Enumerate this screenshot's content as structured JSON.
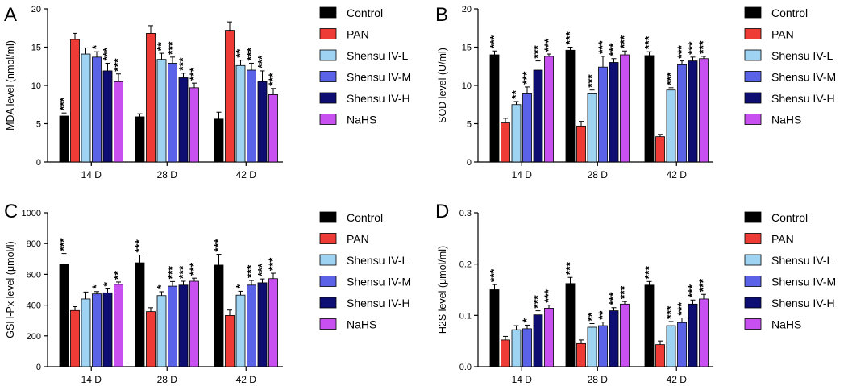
{
  "figure": {
    "group_colors": [
      "#000000",
      "#ef3b36",
      "#9fd3f2",
      "#5a62e8",
      "#0d0d72",
      "#c84ff0"
    ]
  },
  "chart_data": [
    {
      "panel": "A",
      "type": "bar",
      "ylabel": "MDA level (nmol/ml)",
      "ylim": [
        0,
        20
      ],
      "yticks": [
        "0",
        "5",
        "10",
        "15",
        "20"
      ],
      "categories": [
        "14 D",
        "28 D",
        "42 D"
      ],
      "legend": [
        "Control",
        "PAN",
        "Shensu IV-L",
        "Shensu IV-M",
        "Shensu IV-H",
        "NaHS"
      ],
      "series": [
        {
          "name": "Control",
          "values": [
            6.0,
            5.9,
            5.6
          ],
          "errors": [
            0.4,
            0.4,
            0.9
          ],
          "sig": [
            "***",
            "",
            ""
          ]
        },
        {
          "name": "PAN",
          "values": [
            16.0,
            16.8,
            17.2
          ],
          "errors": [
            0.8,
            1.0,
            1.1
          ],
          "sig": [
            "",
            "",
            ""
          ]
        },
        {
          "name": "Shensu IV-L",
          "values": [
            14.1,
            13.4,
            12.6
          ],
          "errors": [
            0.8,
            0.8,
            0.7
          ],
          "sig": [
            "",
            "**",
            "**"
          ]
        },
        {
          "name": "Shensu IV-M",
          "values": [
            13.7,
            12.9,
            12.0
          ],
          "errors": [
            0.7,
            0.8,
            0.9
          ],
          "sig": [
            "*",
            "***",
            "***"
          ]
        },
        {
          "name": "Shensu IV-H",
          "values": [
            11.9,
            11.0,
            10.5
          ],
          "errors": [
            1.0,
            0.6,
            1.4
          ],
          "sig": [
            "***",
            "***",
            "***"
          ]
        },
        {
          "name": "NaHS",
          "values": [
            10.5,
            9.7,
            8.8
          ],
          "errors": [
            1.0,
            0.6,
            0.8
          ],
          "sig": [
            "***",
            "***",
            "***"
          ]
        }
      ]
    },
    {
      "panel": "B",
      "type": "bar",
      "ylabel": "SOD level (U/ml)",
      "ylim": [
        0,
        20
      ],
      "yticks": [
        "0",
        "5",
        "10",
        "15",
        "20"
      ],
      "categories": [
        "14 D",
        "28 D",
        "42 D"
      ],
      "legend": [
        "Control",
        "PAN",
        "Shensu IV-L",
        "Shensu IV-M",
        "Shensu IV-H",
        "NaHS"
      ],
      "series": [
        {
          "name": "Control",
          "values": [
            14.0,
            14.6,
            13.9
          ],
          "errors": [
            0.5,
            0.4,
            0.5
          ],
          "sig": [
            "***",
            "***",
            "***"
          ]
        },
        {
          "name": "PAN",
          "values": [
            5.1,
            4.7,
            3.3
          ],
          "errors": [
            0.6,
            0.6,
            0.3
          ],
          "sig": [
            "",
            "",
            ""
          ]
        },
        {
          "name": "Shensu IV-L",
          "values": [
            7.5,
            8.9,
            9.4
          ],
          "errors": [
            0.4,
            0.5,
            0.3
          ],
          "sig": [
            "**",
            "***",
            "***"
          ]
        },
        {
          "name": "Shensu IV-M",
          "values": [
            8.9,
            12.4,
            12.7
          ],
          "errors": [
            0.9,
            1.4,
            0.5
          ],
          "sig": [
            "***",
            "***",
            "***"
          ]
        },
        {
          "name": "Shensu IV-H",
          "values": [
            12.0,
            13.0,
            13.2
          ],
          "errors": [
            1.2,
            0.5,
            0.5
          ],
          "sig": [
            "***",
            "***",
            "***"
          ]
        },
        {
          "name": "NaHS",
          "values": [
            13.8,
            14.0,
            13.5
          ],
          "errors": [
            0.3,
            0.5,
            0.3
          ],
          "sig": [
            "***",
            "***",
            "***"
          ]
        }
      ]
    },
    {
      "panel": "C",
      "type": "bar",
      "ylabel": "GSH-Px level (μmol/l)",
      "ylim": [
        0,
        1000
      ],
      "yticks": [
        "0",
        "200",
        "400",
        "600",
        "800",
        "1000"
      ],
      "categories": [
        "14 D",
        "28 D",
        "42 D"
      ],
      "legend": [
        "Control",
        "PAN",
        "Shensu IV-L",
        "Shensu IV-M",
        "Shensu IV-H",
        "NaHS"
      ],
      "series": [
        {
          "name": "Control",
          "values": [
            665,
            675,
            660
          ],
          "errors": [
            70,
            50,
            70
          ],
          "sig": [
            "***",
            "***",
            "***"
          ]
        },
        {
          "name": "PAN",
          "values": [
            365,
            358,
            333
          ],
          "errors": [
            25,
            25,
            35
          ],
          "sig": [
            "",
            "",
            ""
          ]
        },
        {
          "name": "Shensu IV-L",
          "values": [
            440,
            462,
            465
          ],
          "errors": [
            45,
            25,
            25
          ],
          "sig": [
            "",
            "*",
            "*"
          ]
        },
        {
          "name": "Shensu IV-M",
          "values": [
            473,
            523,
            530
          ],
          "errors": [
            15,
            30,
            30
          ],
          "sig": [
            "*",
            "***",
            "***"
          ]
        },
        {
          "name": "Shensu IV-H",
          "values": [
            480,
            530,
            545
          ],
          "errors": [
            25,
            25,
            25
          ],
          "sig": [
            "*",
            "***",
            "***"
          ]
        },
        {
          "name": "NaHS",
          "values": [
            535,
            555,
            572
          ],
          "errors": [
            15,
            20,
            35
          ],
          "sig": [
            "**",
            "***",
            "***"
          ]
        }
      ]
    },
    {
      "panel": "D",
      "type": "bar",
      "ylabel": "H2S level (μmol/ml)",
      "ylim": [
        0,
        0.3
      ],
      "yticks": [
        "0.0",
        "0.1",
        "0.2",
        "0.3"
      ],
      "categories": [
        "14 D",
        "28 D",
        "42 D"
      ],
      "legend": [
        "Control",
        "PAN",
        "Shensu IV-L",
        "Shensu IV-M",
        "Shensu IV-H",
        "NaHS"
      ],
      "series": [
        {
          "name": "Control",
          "values": [
            0.15,
            0.162,
            0.159
          ],
          "errors": [
            0.01,
            0.012,
            0.007
          ],
          "sig": [
            "***",
            "***",
            "***"
          ]
        },
        {
          "name": "PAN",
          "values": [
            0.052,
            0.045,
            0.043
          ],
          "errors": [
            0.007,
            0.007,
            0.007
          ],
          "sig": [
            "",
            "",
            ""
          ]
        },
        {
          "name": "Shensu IV-L",
          "values": [
            0.072,
            0.077,
            0.08
          ],
          "errors": [
            0.008,
            0.007,
            0.008
          ],
          "sig": [
            "",
            "**",
            "***"
          ]
        },
        {
          "name": "Shensu IV-M",
          "values": [
            0.074,
            0.08,
            0.086
          ],
          "errors": [
            0.007,
            0.007,
            0.009
          ],
          "sig": [
            "*",
            "**",
            "***"
          ]
        },
        {
          "name": "Shensu IV-H",
          "values": [
            0.101,
            0.109,
            0.122
          ],
          "errors": [
            0.008,
            0.006,
            0.008
          ],
          "sig": [
            "***",
            "***",
            "***"
          ]
        },
        {
          "name": "NaHS",
          "values": [
            0.114,
            0.122,
            0.132
          ],
          "errors": [
            0.006,
            0.005,
            0.009
          ],
          "sig": [
            "***",
            "***",
            "***"
          ]
        }
      ]
    }
  ]
}
